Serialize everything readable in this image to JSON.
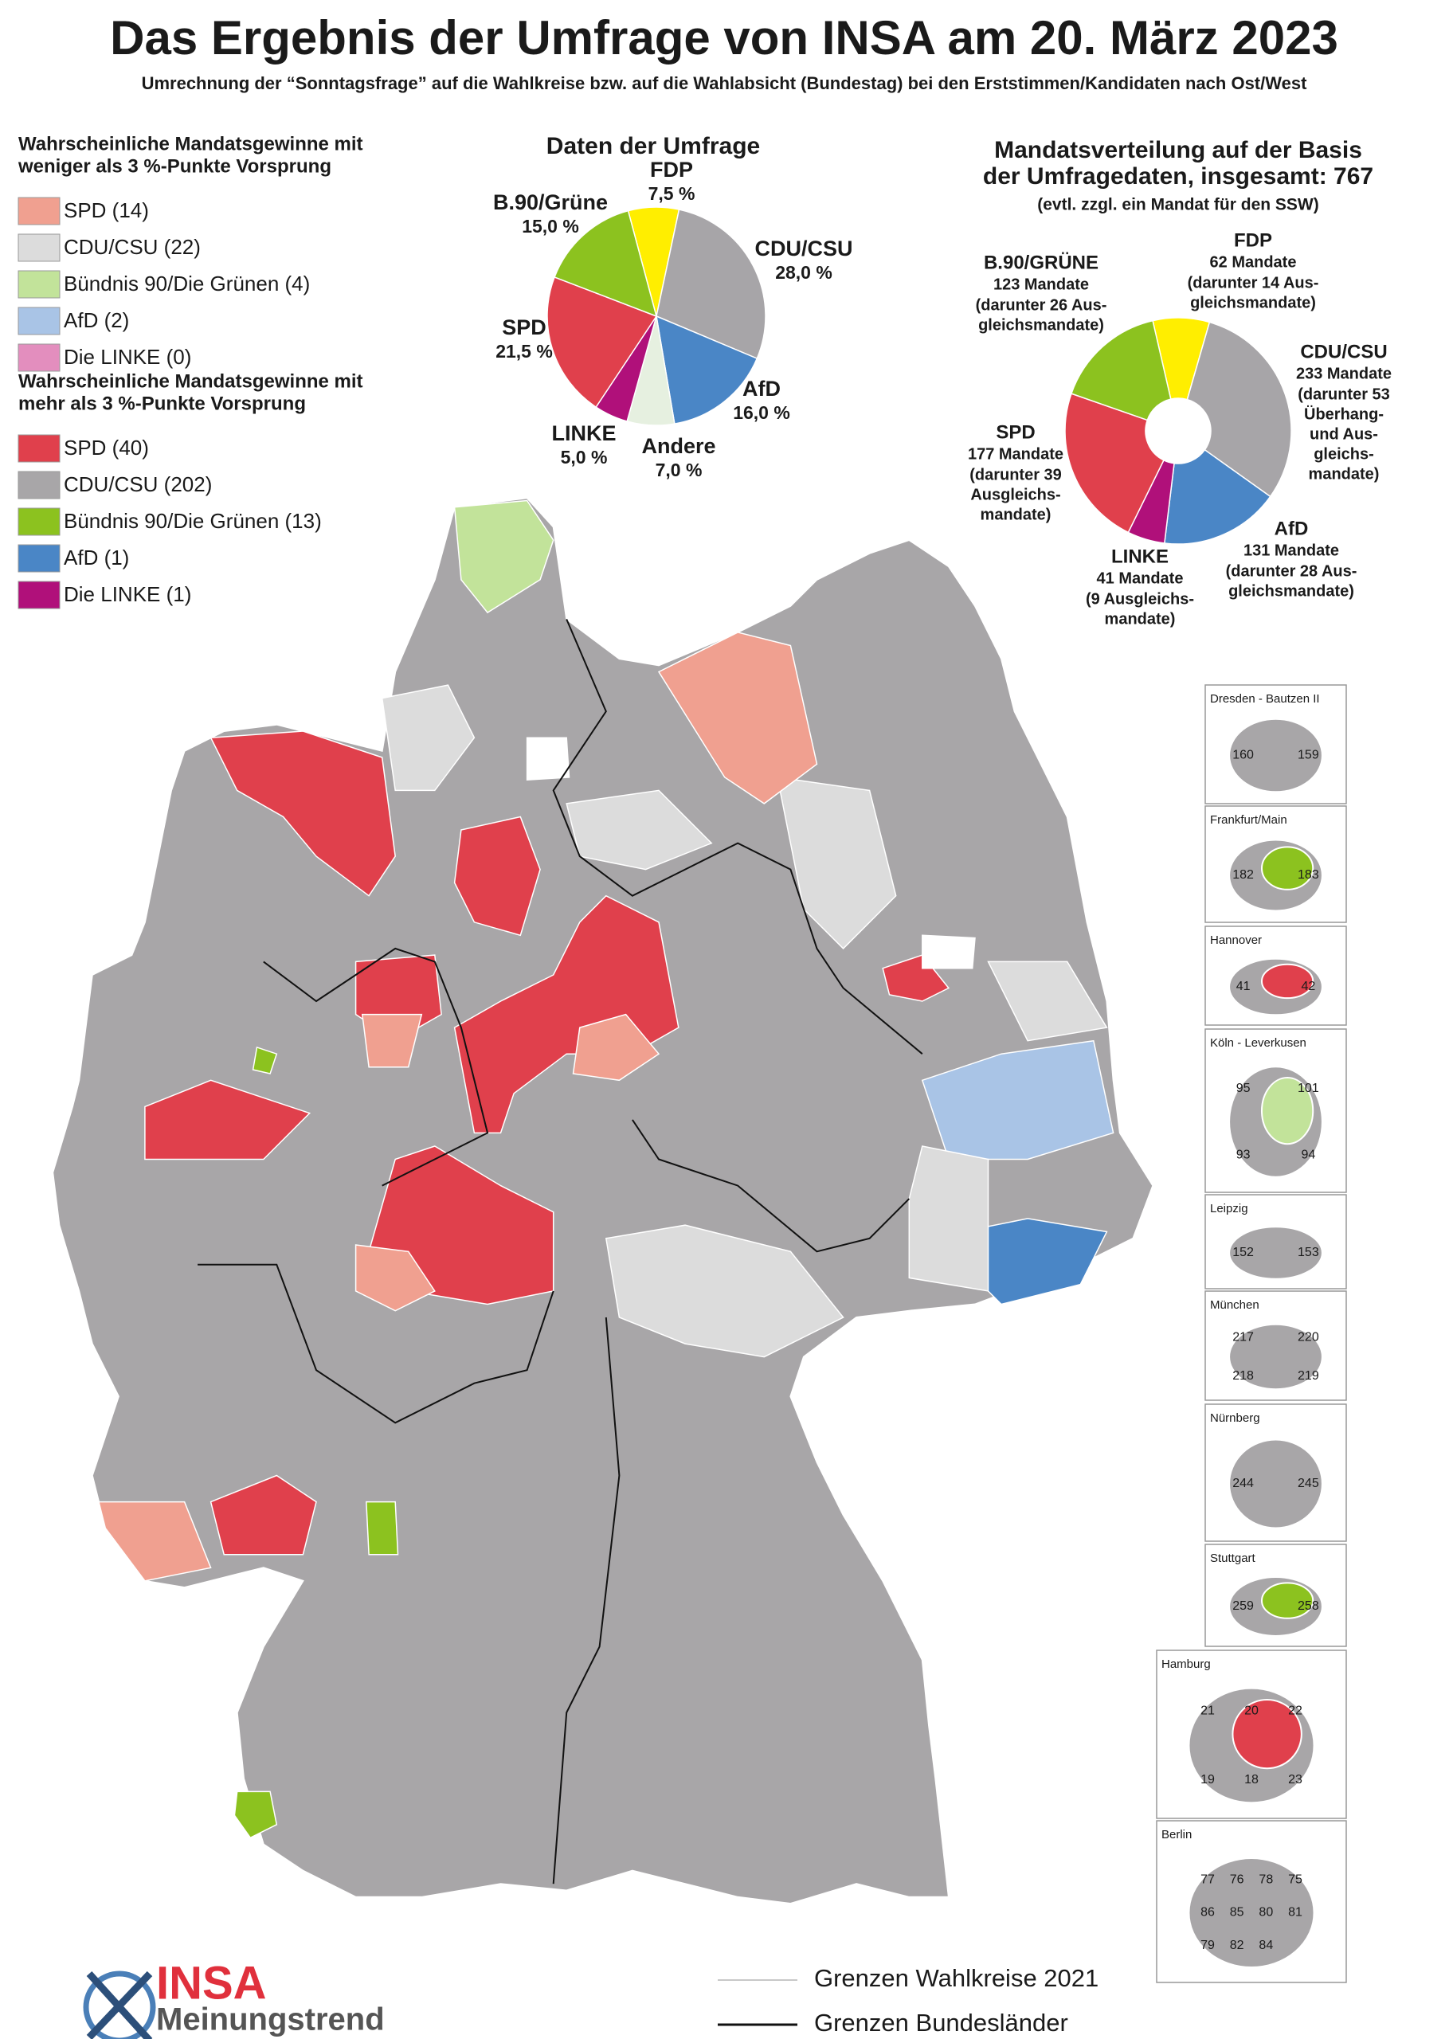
{
  "title": "Das Ergebnis der Umfrage von INSA am 20. März 2023",
  "subtitle": "Umrechnung der “Sonntagsfrage” auf die Wahlkreise bzw. auf die Wahlabsicht (Bundestag) bei den Erststimmen/Kandidaten nach Ost/West",
  "legend": {
    "groups": [
      {
        "heading": [
          "Wahrscheinliche Mandatsgewinne mit",
          "weniger als 3 %-Punkte Vorsprung"
        ],
        "items": [
          {
            "label": "SPD (14)",
            "color": "#f0a090"
          },
          {
            "label": "CDU/CSU (22)",
            "color": "#dcdcdc"
          },
          {
            "label": "Bündnis 90/Die Grünen (4)",
            "color": "#c2e39a"
          },
          {
            "label": "AfD (2)",
            "color": "#a9c4e6"
          },
          {
            "label": "Die LINKE (0)",
            "color": "#e38ebe"
          }
        ]
      },
      {
        "heading": [
          "Wahrscheinliche Mandatsgewinne mit",
          "mehr als 3 %-Punkte Vorsprung"
        ],
        "items": [
          {
            "label": "SPD (40)",
            "color": "#e0404c"
          },
          {
            "label": "CDU/CSU (202)",
            "color": "#a8a6a8"
          },
          {
            "label": "Bündnis 90/Die Grünen (13)",
            "color": "#8cc21f"
          },
          {
            "label": "AfD (1)",
            "color": "#4a86c6"
          },
          {
            "label": "Die LINKE (1)",
            "color": "#b0107a"
          }
        ]
      }
    ]
  },
  "chart_data": [
    {
      "type": "pie",
      "title": "Daten der Umfrage",
      "categories": [
        "FDP",
        "CDU/CSU",
        "AfD",
        "Andere",
        "LINKE",
        "SPD",
        "B.90/Grüne"
      ],
      "values": [
        7.5,
        28.0,
        16.0,
        7.0,
        5.0,
        21.5,
        15.0
      ],
      "value_labels": [
        "7,5 %",
        "28,0 %",
        "16,0 %",
        "7,0 %",
        "5,0 %",
        "21,5 %",
        "15,0 %"
      ],
      "colors": [
        "#ffee00",
        "#a7a5a8",
        "#4a86c6",
        "#e6f0e0",
        "#b0107a",
        "#e0404c",
        "#8cc21f"
      ]
    },
    {
      "type": "donut",
      "title": [
        "Mandatsverteilung auf der Basis",
        "der Umfragedaten, insgesamt: 767"
      ],
      "subtitle": "(evtl. zzgl. ein Mandat für den SSW)",
      "categories": [
        "FDP",
        "CDU/CSU",
        "AfD",
        "LINKE",
        "SPD",
        "B.90/GRÜNE"
      ],
      "values": [
        62,
        233,
        131,
        41,
        177,
        123
      ],
      "value_labels": [
        "62 Mandate",
        "233 Mandate",
        "131 Mandate",
        "41  Mandate",
        "177 Mandate",
        "123 Mandate"
      ],
      "notes": [
        [
          "(darunter 14 Aus-",
          "gleichsmandate)"
        ],
        [
          "(darunter 53",
          "Überhang-",
          "und Aus-",
          "gleichs-",
          "mandate)"
        ],
        [
          "(darunter 28 Aus-",
          "gleichsmandate)"
        ],
        [
          "(9 Ausgleichs-",
          "mandate)"
        ],
        [
          "(darunter 39",
          "Ausgleichs-",
          "mandate)"
        ],
        [
          "(darunter 26 Aus-",
          "gleichsmandate)"
        ]
      ],
      "colors": [
        "#ffee00",
        "#a7a5a8",
        "#4a86c6",
        "#b0107a",
        "#e0404c",
        "#8cc21f"
      ]
    }
  ],
  "insets": [
    {
      "title": "Dresden - Bautzen II",
      "labels": [
        "160",
        "159"
      ]
    },
    {
      "title": "Frankfurt/Main",
      "labels": [
        "182",
        "183"
      ]
    },
    {
      "title": "Hannover",
      "labels": [
        "41",
        "42"
      ]
    },
    {
      "title": "Köln -  Leverkusen",
      "labels": [
        "95",
        "101",
        "93",
        "94"
      ]
    },
    {
      "title": "Leipzig",
      "labels": [
        "152",
        "153"
      ]
    },
    {
      "title": "München",
      "labels": [
        "217",
        "220",
        "218",
        "219"
      ]
    },
    {
      "title": "Nürnberg",
      "labels": [
        "244",
        "245"
      ]
    },
    {
      "title": "Stuttgart",
      "labels": [
        "259",
        "258"
      ]
    },
    {
      "title": "Hamburg",
      "labels": [
        "21",
        "20",
        "22",
        "19",
        "18",
        "23"
      ]
    },
    {
      "title": "Berlin",
      "labels": [
        "77",
        "76",
        "78",
        "75",
        "86",
        "85",
        "80",
        "81",
        "79",
        "82",
        "84"
      ]
    }
  ],
  "map_legend": [
    {
      "label": "Grenzen Wahlkreise 2021",
      "color": "#c8c8c8"
    },
    {
      "label": "Grenzen Bundesländer",
      "color": "#111111"
    }
  ],
  "logo": {
    "brand": "INSA",
    "tagline": "Meinungstrend"
  }
}
